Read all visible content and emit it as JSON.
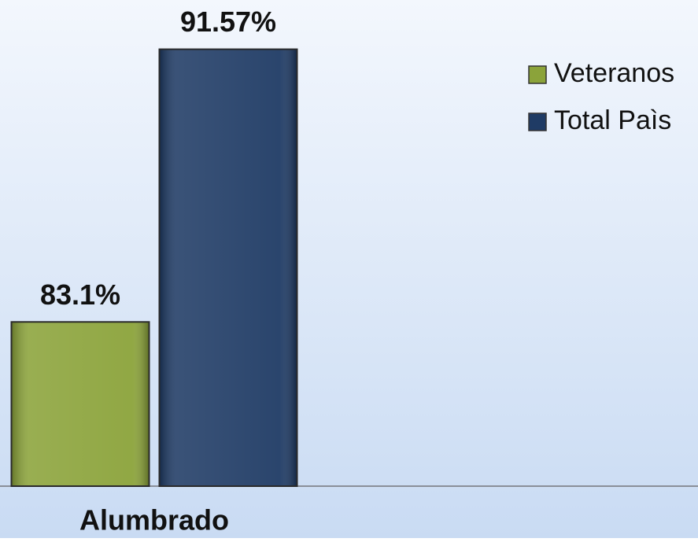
{
  "chart_data": {
    "type": "bar",
    "categories": [
      "Alumbrado"
    ],
    "series": [
      {
        "name": "Veteranos",
        "color": "#8ba33a",
        "values": [
          83.1
        ],
        "value_labels": [
          "83.1%"
        ]
      },
      {
        "name": "Total Paìs",
        "color": "#1f3b65",
        "values": [
          91.57
        ],
        "value_labels": [
          "91.57%"
        ]
      }
    ],
    "ylim": [
      78,
      92
    ],
    "legend": "right"
  }
}
